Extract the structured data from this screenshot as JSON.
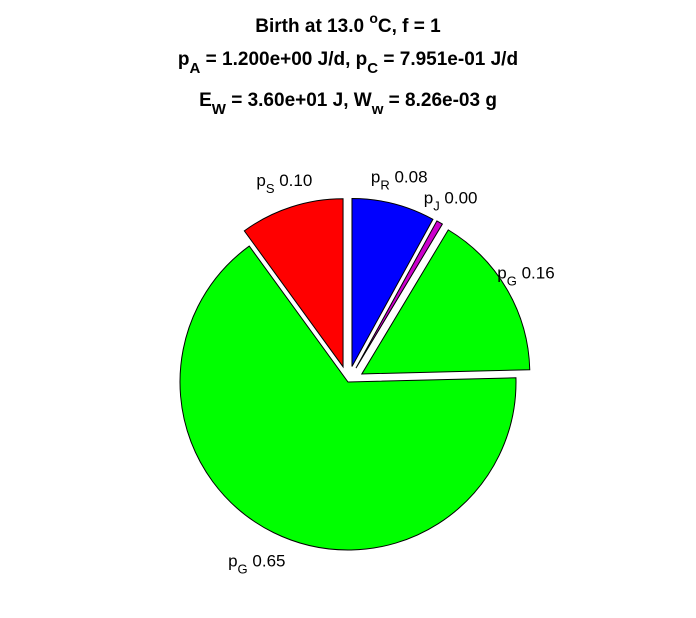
{
  "chart_data": {
    "type": "pie",
    "title_lines": [
      [
        {
          "t": "Birth at 13.0 "
        },
        {
          "t": "o",
          "sup": true
        },
        {
          "t": "C, f = 1"
        }
      ],
      [
        {
          "t": "p"
        },
        {
          "t": "A",
          "sub": true
        },
        {
          "t": " = 1.200e+00 J/d, p"
        },
        {
          "t": "C",
          "sub": true
        },
        {
          "t": " = 7.951e-01 J/d"
        }
      ],
      [
        {
          "t": "E"
        },
        {
          "t": "W",
          "sub": true
        },
        {
          "t": " = 3.60e+01 J, W"
        },
        {
          "t": "w",
          "sub": true
        },
        {
          "t": " = 8.26e-03 g"
        }
      ]
    ],
    "slices": [
      {
        "symbol": "p",
        "sub": "R",
        "value": 0.08,
        "label": "0.08",
        "color": "#0000ff",
        "exploded": true
      },
      {
        "symbol": "p",
        "sub": "J",
        "value": 0.006,
        "label": "0.00",
        "color": "#cc00cc",
        "exploded": true
      },
      {
        "symbol": "p",
        "sub": "G",
        "value": 0.16,
        "label": "0.16",
        "color": "#00ff00",
        "exploded": true
      },
      {
        "symbol": "p",
        "sub": "G",
        "value": 0.654,
        "label": "0.65",
        "color": "#00ff00",
        "exploded": false
      },
      {
        "symbol": "p",
        "sub": "S",
        "value": 0.1,
        "label": "0.10",
        "color": "#ff0000",
        "exploded": true
      }
    ],
    "start": "12 o'clock",
    "direction": "clockwise",
    "legend": "none"
  }
}
